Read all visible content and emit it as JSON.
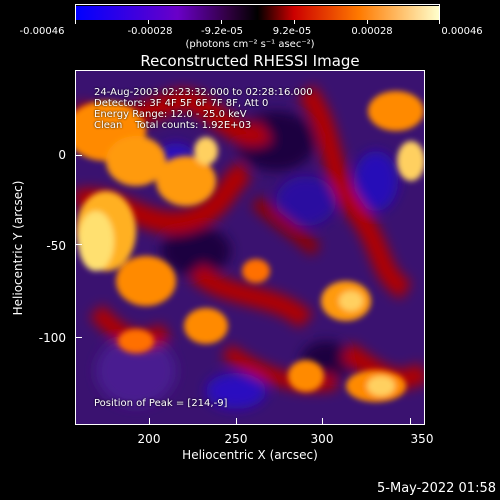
{
  "colorbar": {
    "ticks": [
      "-0.00046",
      "-0.00028",
      "-9.2e-05",
      "9.2e-05",
      "0.00028",
      "0.00046"
    ],
    "unit_label": "(photons cm⁻² s⁻¹ asec⁻²)",
    "colors": [
      "#0000ff",
      "#6600cc",
      "#000000",
      "#cc0000",
      "#ff8800",
      "#ffff99"
    ]
  },
  "title": "Reconstructed RHESSI Image",
  "info_lines": [
    "24-Aug-2003 02:23:32.000 to 02:28:16.000",
    "Detectors: 3F 4F 5F 6F 7F 8F, Att 0",
    "Energy Range: 12.0 - 25.0 keV",
    "Clean    Total counts: 1.92E+03"
  ],
  "peak_label": "Position of Peak = [214,-9]",
  "x_axis": {
    "label": "Heliocentric X (arcsec)",
    "ticks": [
      "200",
      "250",
      "300",
      "350"
    ]
  },
  "y_axis": {
    "label": "Heliocentric Y (arcsec)",
    "ticks": [
      "0",
      "-50",
      "-100"
    ]
  },
  "timestamp": "5-May-2022 01:58"
}
